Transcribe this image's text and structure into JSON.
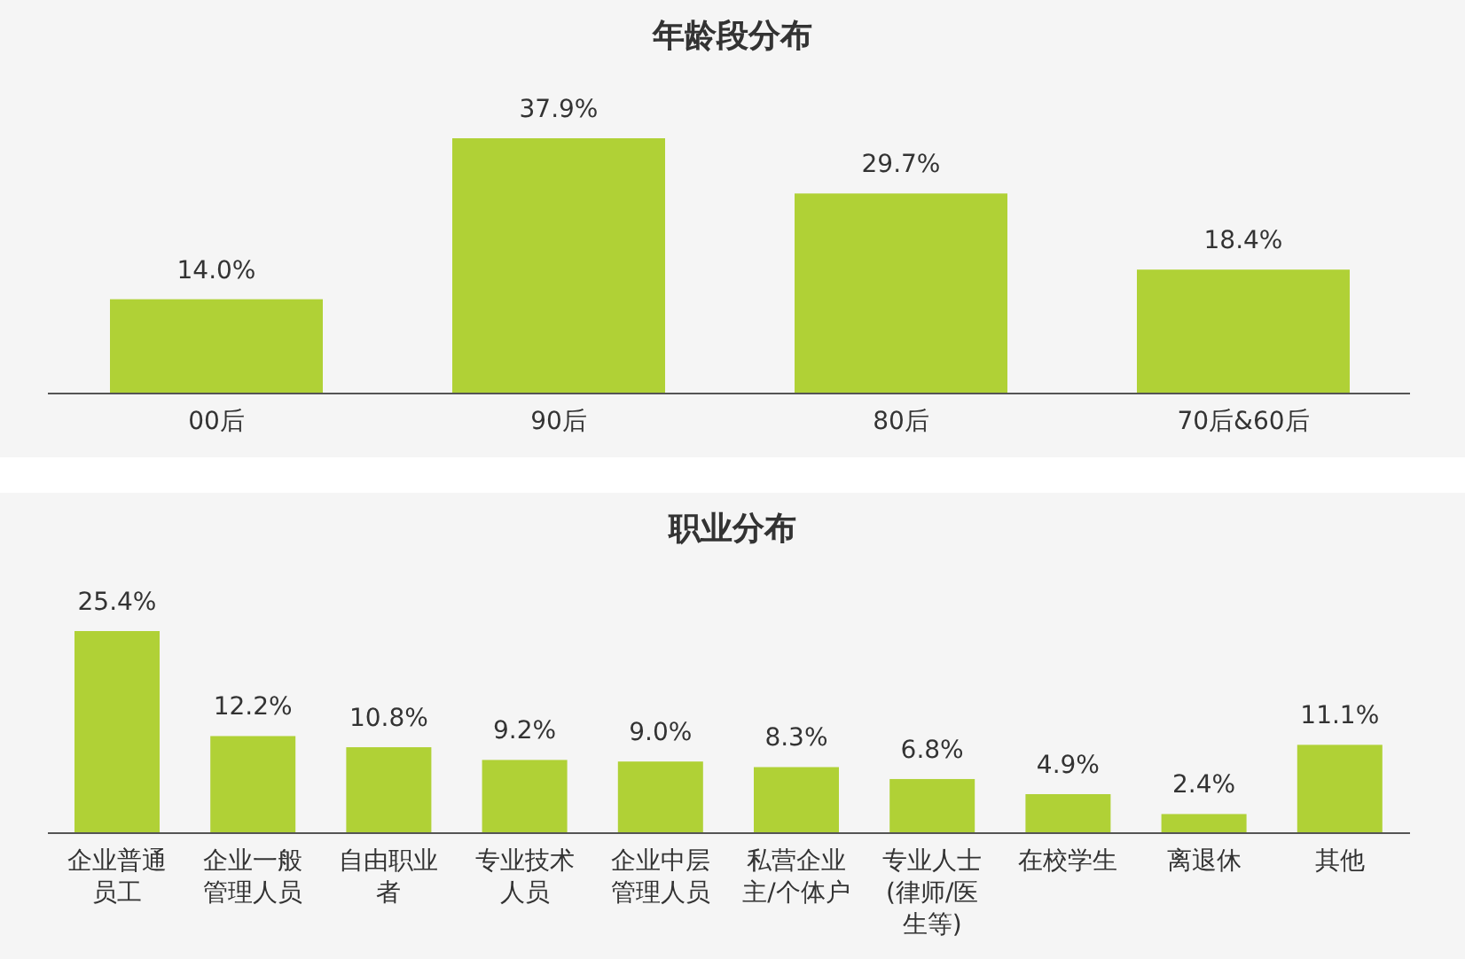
{
  "chart_data": [
    {
      "type": "bar",
      "title": "年龄段分布",
      "categories": [
        "00后",
        "90后",
        "80后",
        "70后&60后"
      ],
      "values": [
        14.0,
        37.9,
        29.7,
        18.4
      ],
      "value_labels": [
        "14.0%",
        "37.9%",
        "29.7%",
        "18.4%"
      ],
      "color": "#b0d136"
    },
    {
      "type": "bar",
      "title": "职业分布",
      "categories": [
        "企业普通员工",
        "企业一般管理人员",
        "自由职业者",
        "专业技术人员",
        "企业中层管理人员",
        "私营企业主/个体户",
        "专业人士(律师/医生等)",
        "在校学生",
        "离退休",
        "其他"
      ],
      "values": [
        25.4,
        12.2,
        10.8,
        9.2,
        9.0,
        8.3,
        6.8,
        4.9,
        2.4,
        11.1
      ],
      "value_labels": [
        "25.4%",
        "12.2%",
        "10.8%",
        "9.2%",
        "9.0%",
        "8.3%",
        "6.8%",
        "4.9%",
        "2.4%",
        "11.1%"
      ],
      "color": "#b0d136"
    }
  ]
}
